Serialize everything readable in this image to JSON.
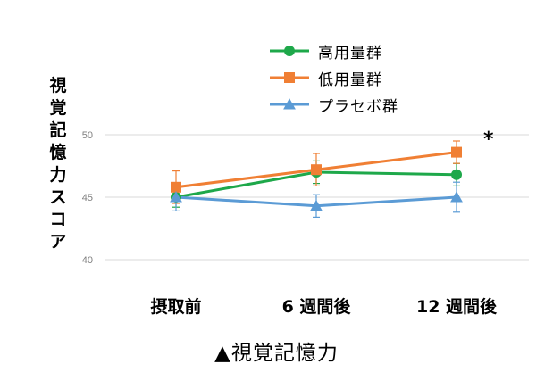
{
  "chart_data": {
    "type": "line",
    "title": "",
    "xlabel": "",
    "ylabel": "視覚記憶力スコア",
    "caption": "▲視覚記憶力",
    "categories": [
      "摂取前",
      "6 週間後",
      "12 週間後"
    ],
    "ylim": [
      40,
      50
    ],
    "yticks": [
      40,
      45,
      50
    ],
    "grid": true,
    "legend_position": "top",
    "annotations": [
      {
        "text": "*",
        "near": "低用量群 at 12 週間後"
      }
    ],
    "series": [
      {
        "name": "高用量群",
        "color": "#1ea84a",
        "marker": "circle",
        "values": [
          45.0,
          47.0,
          46.8
        ],
        "error": [
          0.8,
          0.9,
          0.9
        ]
      },
      {
        "name": "低用量群",
        "color": "#f07f34",
        "marker": "square",
        "values": [
          45.8,
          47.2,
          48.6
        ],
        "error": [
          1.3,
          1.3,
          0.9
        ]
      },
      {
        "name": "プラセボ群",
        "color": "#5b9bd5",
        "marker": "triangle",
        "values": [
          45.0,
          44.3,
          45.0
        ],
        "error": [
          1.1,
          0.9,
          1.2
        ]
      }
    ]
  }
}
